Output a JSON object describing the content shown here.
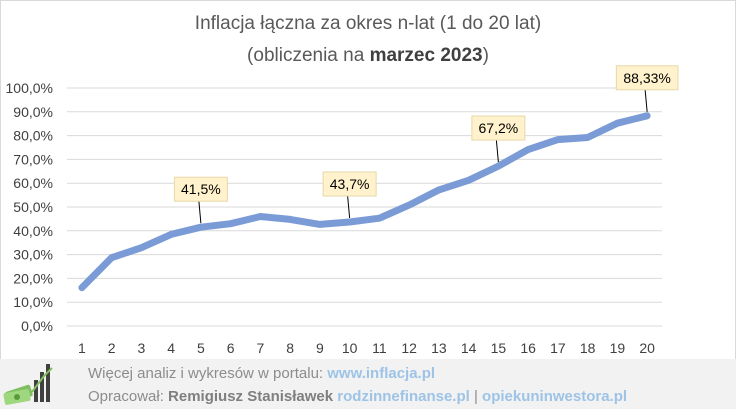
{
  "title_line1": "Inflacja łączna za okres n-lat (1 do 20 lat)",
  "title_line2_prefix": "(obliczenia  na ",
  "title_line2_bold": "marzec 2023",
  "title_line2_suffix": ")",
  "colors": {
    "series": "#7b9bd6",
    "grid": "#d9d9d9",
    "axis_text": "#404040",
    "callout_fill": "#fff2cc",
    "callout_border": "#e6d8a8",
    "footer_bg": "#f2f2f2",
    "link": "#9dc3e6"
  },
  "chart_data": {
    "type": "line",
    "title": "Inflacja łączna za okres n-lat (1 do 20 lat) (obliczenia na marzec 2023)",
    "xlabel": "",
    "ylabel": "",
    "x": [
      1,
      2,
      3,
      4,
      5,
      6,
      7,
      8,
      9,
      10,
      11,
      12,
      13,
      14,
      15,
      16,
      17,
      18,
      19,
      20
    ],
    "series": [
      {
        "values": [
          16.1,
          28.7,
          32.9,
          38.5,
          41.5,
          43.0,
          46.0,
          44.8,
          42.7,
          43.7,
          45.3,
          50.8,
          57.2,
          61.2,
          67.2,
          74.1,
          78.3,
          79.2,
          85.2,
          88.33
        ]
      }
    ],
    "ylim": [
      0,
      100
    ],
    "yticks": [
      "0,0%",
      "10,0%",
      "20,0%",
      "30,0%",
      "40,0%",
      "50,0%",
      "60,0%",
      "70,0%",
      "80,0%",
      "90,0%",
      "100,0%"
    ],
    "grid": true,
    "legend": "none",
    "annotations": [
      {
        "x": 5,
        "label": "41,5%"
      },
      {
        "x": 10,
        "label": "43,7%"
      },
      {
        "x": 15,
        "label": "67,2%"
      },
      {
        "x": 20,
        "label": "88,33%"
      }
    ]
  },
  "footer": {
    "line1_prefix": "Więcej analiz i wykresów w portalu: ",
    "line1_link": "www.inflacja.pl",
    "line2_prefix": "Opracował: ",
    "line2_author": "Remigiusz Stanisławek",
    "line2_link1": "rodzinnefinanse.pl",
    "line2_sep": " | ",
    "line2_link2": "opiekuninwestora.pl"
  },
  "logo_icon": "money-chart-logo-icon"
}
